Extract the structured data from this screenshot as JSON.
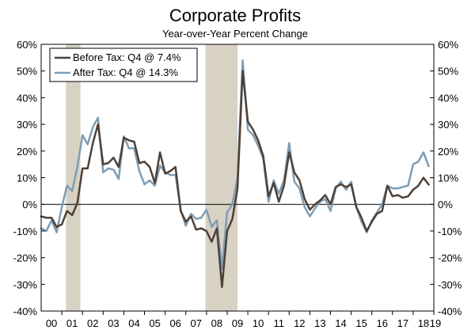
{
  "chart_data": {
    "type": "line",
    "title": "Corporate Profits",
    "subtitle": "Year-over-Year Percent Change",
    "xlabel": "",
    "ylabel": "",
    "x_tick_labels": [
      "00",
      "01",
      "02",
      "03",
      "04",
      "05",
      "06",
      "07",
      "08",
      "09",
      "10",
      "11",
      "12",
      "13",
      "14",
      "15",
      "16",
      "17",
      "18",
      "19"
    ],
    "y_tick_labels": [
      "60%",
      "50%",
      "40%",
      "30%",
      "20%",
      "10%",
      "0%",
      "-10%",
      "-20%",
      "-30%",
      "-40%"
    ],
    "y_ticks": [
      60,
      50,
      40,
      30,
      20,
      10,
      0,
      -10,
      -20,
      -30,
      -40
    ],
    "ylim": [
      -40,
      60
    ],
    "xlim": [
      2000.0,
      2019.0
    ],
    "grid": false,
    "legend_position": "top-left",
    "recession_shading": [
      [
        2001.2,
        2001.9
      ],
      [
        2007.95,
        2009.5
      ]
    ],
    "colors": {
      "before_tax": "#4e4037",
      "after_tax": "#7f9db3",
      "recession": "#d8d2c4",
      "zero_line": "#000000"
    },
    "x": [
      2000.0,
      2000.25,
      2000.5,
      2000.75,
      2001.0,
      2001.25,
      2001.5,
      2001.75,
      2002.0,
      2002.25,
      2002.5,
      2002.75,
      2003.0,
      2003.25,
      2003.5,
      2003.75,
      2004.0,
      2004.25,
      2004.5,
      2004.75,
      2005.0,
      2005.25,
      2005.5,
      2005.75,
      2006.0,
      2006.25,
      2006.5,
      2006.75,
      2007.0,
      2007.25,
      2007.5,
      2007.75,
      2008.0,
      2008.25,
      2008.5,
      2008.75,
      2009.0,
      2009.25,
      2009.5,
      2009.75,
      2010.0,
      2010.25,
      2010.5,
      2010.75,
      2011.0,
      2011.25,
      2011.5,
      2011.75,
      2012.0,
      2012.25,
      2012.5,
      2012.75,
      2013.0,
      2013.25,
      2013.5,
      2013.75,
      2014.0,
      2014.25,
      2014.5,
      2014.75,
      2015.0,
      2015.25,
      2015.5,
      2015.75,
      2016.0,
      2016.25,
      2016.5,
      2016.75,
      2017.0,
      2017.25,
      2017.5,
      2017.75,
      2018.0,
      2018.25,
      2018.5,
      2018.75
    ],
    "series": [
      {
        "name": "Before Tax: Q4 @ 7.4%",
        "key": "before_tax",
        "values": [
          -4.5,
          -5.0,
          -5.0,
          -8.5,
          -7.5,
          -2.5,
          -4.0,
          0.5,
          13.5,
          13.5,
          23.0,
          30.0,
          15.0,
          15.5,
          17.5,
          14.0,
          25.0,
          24.0,
          23.5,
          15.5,
          16.0,
          14.0,
          8.0,
          19.5,
          11.5,
          12.5,
          14.0,
          -2.5,
          -6.5,
          -4.5,
          -9.5,
          -9.0,
          -10.0,
          -14.0,
          -9.0,
          -31.0,
          -10.0,
          -5.5,
          6.0,
          50.0,
          31.0,
          28.0,
          24.0,
          18.0,
          3.0,
          8.0,
          1.0,
          7.0,
          19.5,
          12.0,
          9.0,
          2.0,
          -2.0,
          0.0,
          1.5,
          3.5,
          0.0,
          6.5,
          7.5,
          6.5,
          7.5,
          -1.0,
          -5.0,
          -10.0,
          -6.5,
          -3.5,
          -2.5,
          7.0,
          3.0,
          3.5,
          2.5,
          3.0,
          5.5,
          7.0,
          10.0,
          7.4
        ]
      },
      {
        "name": "After Tax: Q4 @ 14.3%",
        "key": "after_tax",
        "values": [
          -9.0,
          -10.0,
          -6.0,
          -10.5,
          -1.0,
          7.0,
          5.0,
          14.0,
          26.0,
          22.5,
          29.0,
          32.5,
          12.0,
          13.5,
          13.0,
          9.5,
          25.5,
          21.0,
          21.0,
          12.5,
          7.5,
          9.0,
          7.0,
          14.5,
          12.0,
          11.0,
          11.0,
          -2.0,
          -8.0,
          -3.5,
          -5.5,
          -5.0,
          -2.0,
          -8.5,
          -6.0,
          -24.0,
          -3.0,
          0.0,
          10.0,
          54.0,
          28.0,
          26.0,
          22.0,
          17.0,
          1.0,
          9.0,
          4.0,
          9.0,
          23.0,
          8.5,
          6.0,
          -1.0,
          -4.5,
          -1.5,
          1.0,
          2.0,
          -2.5,
          6.0,
          8.5,
          5.5,
          8.5,
          -1.0,
          -6.5,
          -10.5,
          -6.0,
          -3.0,
          0.0,
          7.0,
          6.0,
          6.0,
          6.5,
          7.0,
          15.0,
          16.0,
          19.5,
          14.3
        ]
      }
    ]
  }
}
